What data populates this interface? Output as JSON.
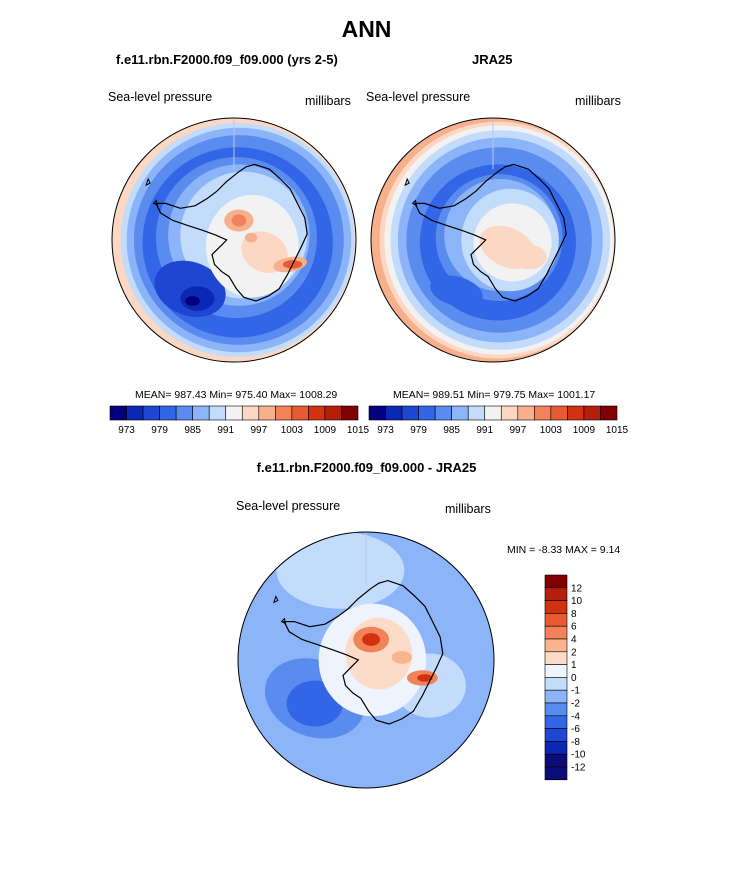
{
  "page": {
    "title": "ANN",
    "diff_title": "f.e11.rbn.F2000.f09_f09.000 - JRA25"
  },
  "colors": {
    "abs_scale": [
      "#000080",
      "#0a28b4",
      "#1e46d2",
      "#3266e6",
      "#5a8cf0",
      "#8cb4f8",
      "#c3dcfc",
      "#f2f2f2",
      "#fcd7c3",
      "#f8b08c",
      "#f2825a",
      "#e85a32",
      "#d2320f",
      "#b41e0a",
      "#800000"
    ],
    "diff_scale": [
      "#0c0c78",
      "#0a28b4",
      "#1e46d2",
      "#3266e6",
      "#5a8cf0",
      "#8cb4f8",
      "#c3dcfc",
      "#eef3fc",
      "#fcdcc8",
      "#f8b48c",
      "#f2825a",
      "#e85a32",
      "#d2320f",
      "#b41e0a",
      "#7f0000"
    ],
    "coastline": "#000000"
  },
  "chart_data": [
    {
      "type": "heatmap",
      "projection": "south-polar stereographic",
      "title": "f.e11.rbn.F2000.f09_f09.000 (yrs 2-5)",
      "left_label": "Sea-level pressure",
      "right_label": "millibars",
      "stats_text": "MEAN= 987.43  Min= 975.40  Max= 1008.29",
      "mean": 987.43,
      "min": 975.4,
      "max": 1008.29,
      "colorbar": {
        "orientation": "horizontal",
        "levels": [
          973,
          976,
          979,
          982,
          985,
          988,
          991,
          994,
          997,
          1000,
          1003,
          1006,
          1009,
          1012,
          1015
        ],
        "tick_labels": [
          "973",
          "979",
          "985",
          "991",
          "997",
          "1003",
          "1009",
          "1015"
        ]
      }
    },
    {
      "type": "heatmap",
      "projection": "south-polar stereographic",
      "title": "JRA25",
      "left_label": "Sea-level pressure",
      "right_label": "millibars",
      "stats_text": "MEAN= 989.51  Min= 979.75  Max= 1001.17",
      "mean": 989.51,
      "min": 979.75,
      "max": 1001.17,
      "colorbar": {
        "orientation": "horizontal",
        "levels": [
          973,
          976,
          979,
          982,
          985,
          988,
          991,
          994,
          997,
          1000,
          1003,
          1006,
          1009,
          1012,
          1015
        ],
        "tick_labels": [
          "973",
          "979",
          "985",
          "991",
          "997",
          "1003",
          "1009",
          "1015"
        ]
      }
    },
    {
      "type": "heatmap",
      "projection": "south-polar stereographic",
      "left_label": "Sea-level pressure",
      "right_label": "millibars",
      "stats_text": "MIN =  -8.33 MAX =   9.14",
      "min": -8.33,
      "max": 9.14,
      "colorbar": {
        "orientation": "vertical",
        "tick_labels": [
          "12",
          "10",
          "8",
          "6",
          "4",
          "2",
          "1",
          "0",
          "-1",
          "-2",
          "-4",
          "-6",
          "-8",
          "-10",
          "-12"
        ]
      }
    }
  ]
}
